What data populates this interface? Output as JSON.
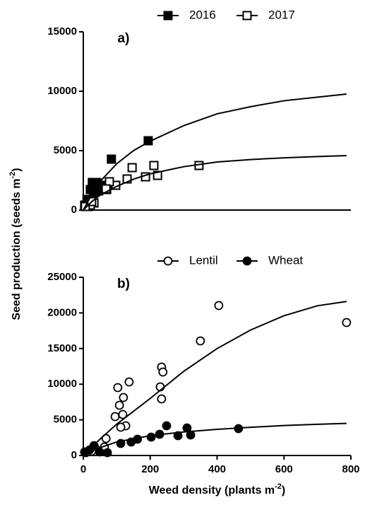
{
  "chart_data": [
    {
      "type": "scatter",
      "title": "a)",
      "ylabel": {
        "text": "Seed production (seeds m",
        "sup": "-2",
        "end": ")"
      },
      "xlim": [
        0,
        800
      ],
      "ylim": [
        0,
        15000
      ],
      "yticks": [
        0,
        5000,
        10000,
        15000
      ],
      "legend": "top",
      "series": [
        {
          "name": "2016",
          "color": "#000000",
          "marker": "square",
          "filled": true,
          "x": [
            194,
            84,
            27,
            40,
            53,
            61,
            46,
            21,
            11,
            4,
            15,
            30,
            70
          ],
          "values": [
            5833,
            4286,
            2321,
            2321,
            2083,
            1786,
            1607,
            1726,
            893,
            417,
            298,
            1488,
            1726
          ]
        },
        {
          "name": "2017",
          "color": "#000000",
          "marker": "square",
          "filled": false,
          "x": [
            346,
            211,
            222,
            186,
            146,
            131,
            97,
            78,
            68,
            32,
            21,
            6,
            25
          ],
          "values": [
            3750,
            3750,
            2917,
            2798,
            3571,
            2619,
            2083,
            2381,
            1786,
            595,
            417,
            298,
            714
          ]
        },
        {
          "style": "line",
          "color": "#000000",
          "x": [
            0,
            25,
            50,
            100,
            150,
            200,
            300,
            400,
            500,
            600,
            700,
            787
          ],
          "values": [
            0,
            1300,
            2400,
            3900,
            5000,
            5800,
            7100,
            8100,
            8700,
            9200,
            9500,
            9760
          ]
        },
        {
          "style": "line",
          "color": "#000000",
          "x": [
            0,
            25,
            50,
            100,
            150,
            200,
            300,
            400,
            500,
            600,
            700,
            787
          ],
          "values": [
            0,
            700,
            1250,
            2000,
            2600,
            3050,
            3650,
            4050,
            4250,
            4400,
            4500,
            4580
          ]
        }
      ]
    },
    {
      "type": "scatter",
      "title": "b)",
      "xlabel": {
        "text": "Weed density (plants m",
        "sup": "-2",
        "end": ")"
      },
      "xlim": [
        0,
        800
      ],
      "xticks": [
        0,
        200,
        400,
        600,
        800
      ],
      "ylim": [
        0,
        25000
      ],
      "yticks": [
        0,
        5000,
        10000,
        15000,
        20000,
        25000
      ],
      "legend": "top",
      "series": [
        {
          "name": "Lentil",
          "color": "#000000",
          "marker": "circle",
          "filled": false,
          "x": [
            405,
            787,
            350,
            234,
            238,
            230,
            234,
            103,
            137,
            120,
            108,
            118,
            95,
            127,
            112,
            68,
            63,
            36,
            25,
            8
          ],
          "values": [
            21032,
            18650,
            16071,
            12401,
            11706,
            9623,
            7937,
            9524,
            10317,
            8135,
            7044,
            5754,
            5456,
            4167,
            3968,
            2381,
            1190,
            992,
            595,
            397
          ]
        },
        {
          "name": "Wheat",
          "color": "#000000",
          "marker": "circle",
          "filled": true,
          "x": [
            464,
            310,
            321,
            283,
            249,
            228,
            203,
            162,
            143,
            112,
            72,
            49,
            32,
            19,
            4
          ],
          "values": [
            3770,
            3869,
            2877,
            2778,
            4167,
            2976,
            2579,
            2282,
            1885,
            1687,
            397,
            496,
            1389,
            794,
            496
          ]
        },
        {
          "style": "line",
          "color": "#000000",
          "x": [
            0,
            50,
            100,
            200,
            300,
            400,
            500,
            600,
            700,
            787
          ],
          "values": [
            0,
            2300,
            4400,
            8000,
            11800,
            15000,
            17600,
            19600,
            21000,
            21600
          ]
        },
        {
          "style": "line",
          "color": "#000000",
          "x": [
            0,
            25,
            50,
            100,
            200,
            300,
            400,
            500,
            600,
            700,
            787
          ],
          "values": [
            0,
            600,
            1100,
            1900,
            2780,
            3300,
            3670,
            3950,
            4200,
            4380,
            4500
          ]
        }
      ]
    }
  ]
}
